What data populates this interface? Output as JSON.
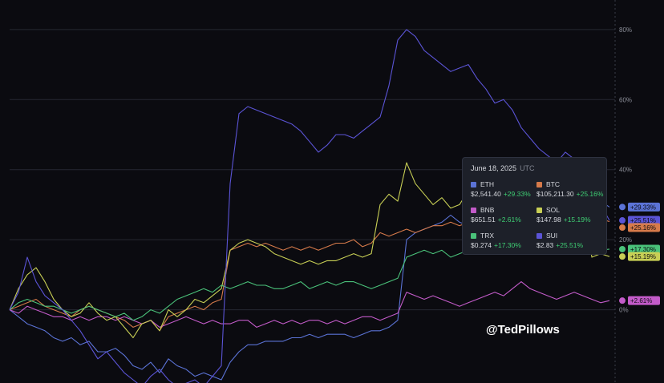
{
  "chart_data": {
    "type": "line",
    "ylim": [
      -20,
      85
    ],
    "y_ticks": [
      0,
      20,
      40,
      60,
      80
    ],
    "y_tick_labels": [
      "0%",
      "20%",
      "40%",
      "60%",
      "80%"
    ],
    "grid": true,
    "series": [
      {
        "name": "ETH",
        "color": "#5b73d6",
        "last_label": "+29.33%",
        "values": [
          0,
          -2,
          -4,
          -5,
          -6,
          -8,
          -9,
          -8,
          -10,
          -9,
          -12,
          -12,
          -11,
          -13,
          -16,
          -17,
          -15,
          -18,
          -14,
          -16,
          -17,
          -19,
          -18,
          -19,
          -20,
          -15,
          -12,
          -10,
          -10,
          -9,
          -9,
          -9,
          -8,
          -8,
          -7,
          -8,
          -7,
          -7,
          -7,
          -8,
          -7,
          -6,
          -6,
          -5,
          -3,
          20,
          22,
          23,
          24,
          25,
          27,
          25,
          24,
          26,
          26,
          25,
          27,
          28,
          27,
          29,
          30,
          29,
          32,
          30,
          31,
          30,
          29,
          31,
          29.33
        ]
      },
      {
        "name": "BTC",
        "color": "#d67a4a",
        "last_label": "+25.16%",
        "values": [
          0,
          1,
          2,
          3,
          1,
          0,
          -1,
          -2,
          0,
          1,
          0,
          -1,
          -2,
          -3,
          -5,
          -4,
          -3,
          -6,
          -2,
          -1,
          0,
          1,
          0,
          2,
          3,
          17,
          18,
          19,
          18,
          19,
          18,
          17,
          18,
          17,
          18,
          17,
          18,
          19,
          19,
          20,
          18,
          19,
          22,
          21,
          22,
          23,
          22,
          23,
          24,
          24,
          25,
          24,
          25,
          24,
          26,
          25,
          24,
          27,
          26,
          27,
          26,
          27,
          28,
          26,
          27,
          28,
          25,
          26,
          25.16
        ]
      },
      {
        "name": "BNB",
        "color": "#c35bc9",
        "last_label": "+2.61%",
        "values": [
          0,
          -1,
          1,
          0,
          -1,
          -2,
          -2,
          -3,
          -2,
          -3,
          -2,
          -2,
          -3,
          -2,
          -3,
          -4,
          -3,
          -5,
          -4,
          -3,
          -2,
          -3,
          -4,
          -3,
          -4,
          -4,
          -3,
          -3,
          -5,
          -4,
          -3,
          -4,
          -3,
          -4,
          -3,
          -3,
          -4,
          -3,
          -4,
          -3,
          -2,
          -2,
          -3,
          -2,
          -1,
          5,
          4,
          3,
          4,
          3,
          2,
          1,
          2,
          3,
          4,
          5,
          4,
          6,
          8,
          6,
          5,
          4,
          3,
          4,
          5,
          4,
          3,
          2,
          2.61
        ]
      },
      {
        "name": "SOL",
        "color": "#c8cf55",
        "last_label": "+15.19%",
        "values": [
          0,
          6,
          10,
          12,
          8,
          3,
          0,
          -2,
          -1,
          2,
          -1,
          -3,
          -2,
          -5,
          -8,
          -4,
          -3,
          -6,
          0,
          -2,
          0,
          3,
          2,
          4,
          6,
          17,
          19,
          20,
          19,
          18,
          16,
          15,
          14,
          13,
          14,
          13,
          14,
          14,
          15,
          16,
          15,
          16,
          30,
          33,
          31,
          42,
          36,
          33,
          30,
          32,
          29,
          30,
          34,
          33,
          36,
          35,
          37,
          34,
          35,
          36,
          33,
          34,
          35,
          32,
          34,
          33,
          15,
          16,
          15.19
        ]
      },
      {
        "name": "TRX",
        "color": "#4ac27a",
        "last_label": "+17.30%",
        "values": [
          0,
          2,
          3,
          2,
          1,
          1,
          0,
          -1,
          0,
          1,
          0,
          -1,
          -2,
          -1,
          -3,
          -2,
          0,
          -1,
          1,
          3,
          4,
          5,
          6,
          5,
          7,
          6,
          7,
          8,
          7,
          7,
          6,
          6,
          7,
          8,
          6,
          7,
          8,
          7,
          8,
          8,
          7,
          6,
          7,
          8,
          9,
          15,
          16,
          17,
          16,
          17,
          15,
          16,
          17,
          18,
          17,
          16,
          17,
          18,
          17,
          18,
          16,
          17,
          18,
          17,
          18,
          17,
          16,
          17,
          17.3
        ]
      },
      {
        "name": "SUI",
        "color": "#5b54d6",
        "last_label": "+25.51%",
        "values": [
          0,
          5,
          15,
          8,
          4,
          2,
          0,
          -3,
          -6,
          -10,
          -14,
          -12,
          -15,
          -18,
          -20,
          -22,
          -19,
          -17,
          -20,
          -22,
          -21,
          -20,
          -22,
          -19,
          -16,
          36,
          56,
          58,
          57,
          56,
          55,
          54,
          53,
          51,
          48,
          45,
          47,
          50,
          50,
          49,
          51,
          53,
          55,
          64,
          77,
          80,
          78,
          74,
          72,
          70,
          68,
          69,
          70,
          66,
          63,
          59,
          60,
          57,
          52,
          49,
          46,
          44,
          42,
          45,
          43,
          41,
          36,
          30,
          25.51
        ]
      }
    ]
  },
  "tooltip": {
    "date": "June 18, 2025",
    "tz": "UTC",
    "items": [
      {
        "name": "ETH",
        "price": "$2,541.40",
        "pct": "+29.33%"
      },
      {
        "name": "BTC",
        "price": "$105,211.30",
        "pct": "+25.16%"
      },
      {
        "name": "BNB",
        "price": "$651.51",
        "pct": "+2.61%"
      },
      {
        "name": "SOL",
        "price": "$147.98",
        "pct": "+15.19%"
      },
      {
        "name": "TRX",
        "price": "$0.274",
        "pct": "+17.30%"
      },
      {
        "name": "SUI",
        "price": "$2.83",
        "pct": "+25.51%"
      }
    ]
  },
  "watermark": "@TedPillows",
  "colors": {
    "background": "#0b0b10",
    "grid": "#262832",
    "positive": "#3fcf74",
    "tooltip_bg": "#1d2029"
  },
  "icons": {
    "ETH": "ethereum-icon",
    "BTC": "bitcoin-icon",
    "BNB": "bnb-icon",
    "SOL": "solana-icon",
    "TRX": "tron-icon",
    "SUI": "sui-icon"
  }
}
